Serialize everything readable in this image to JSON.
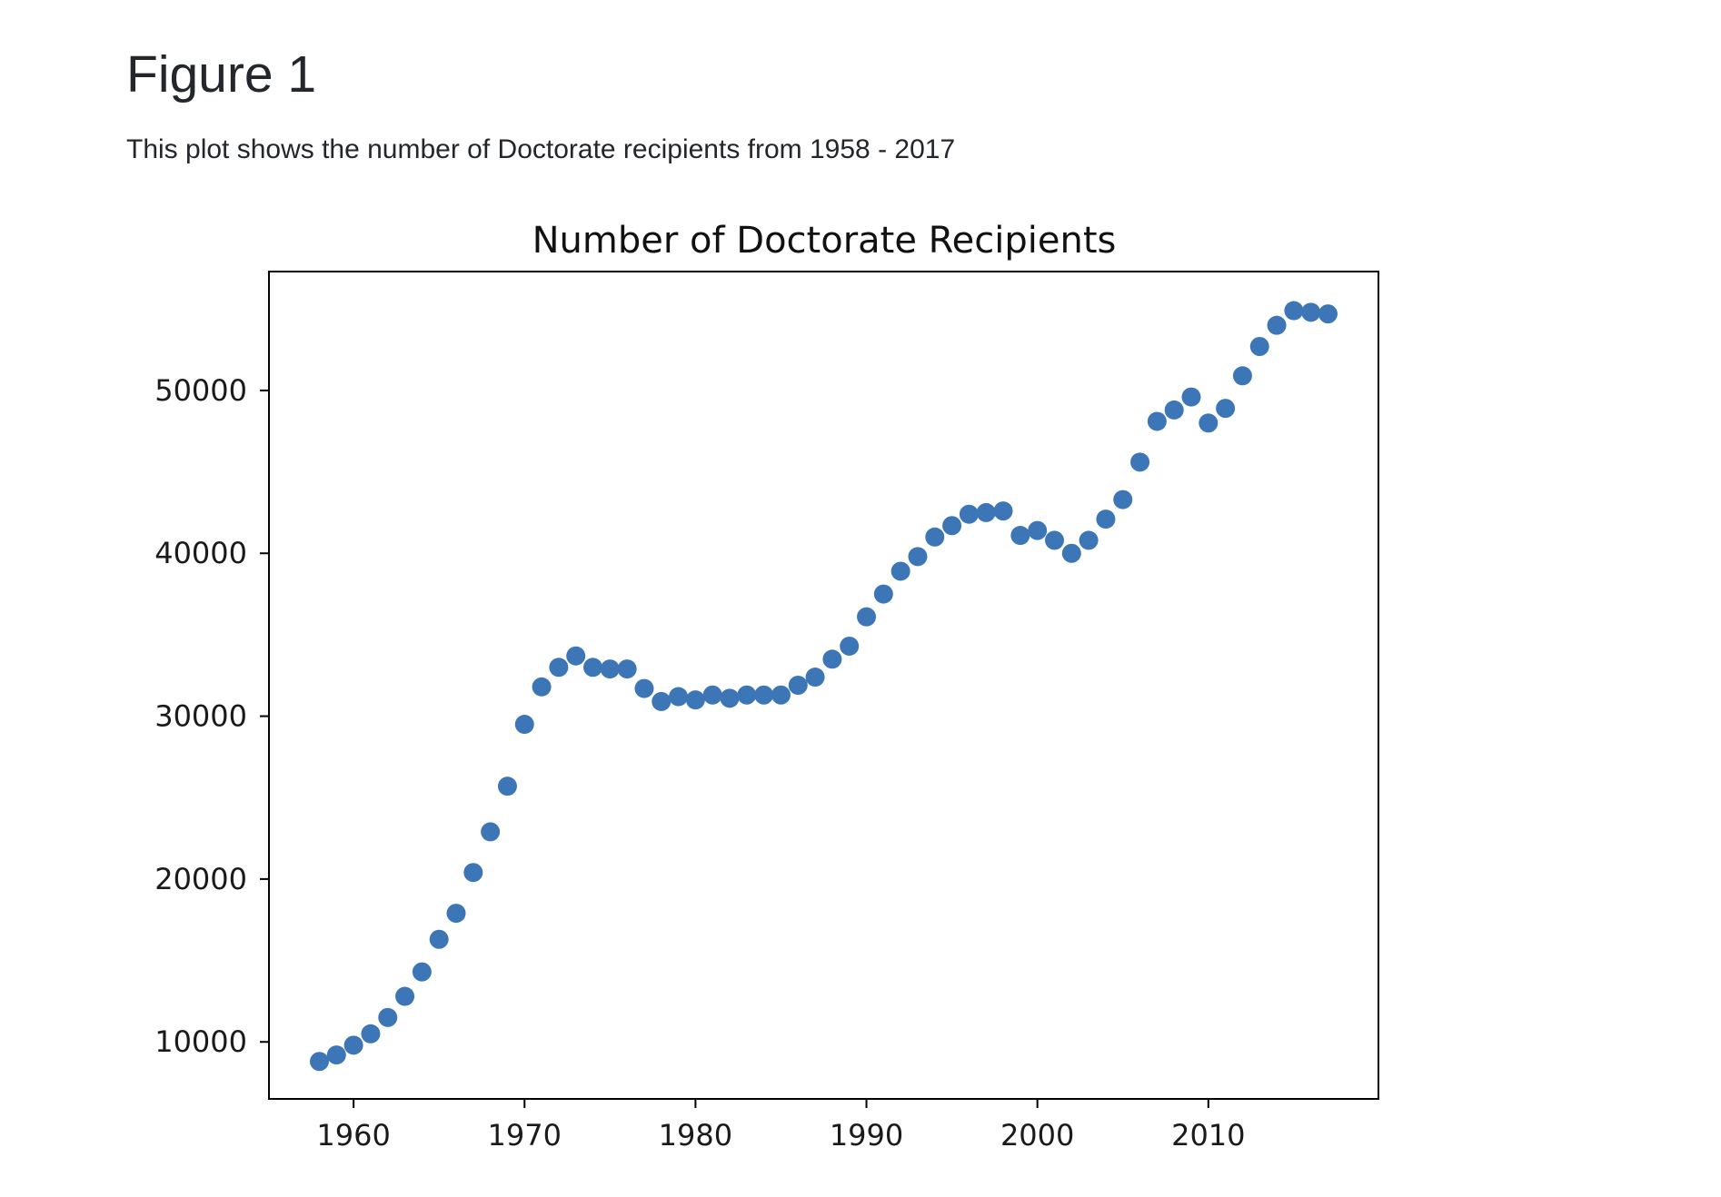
{
  "page": {
    "heading": "Figure 1",
    "caption": "This plot shows the number of Doctorate recipients from 1958 - 2017"
  },
  "chart_data": {
    "type": "scatter",
    "title": "Number of Doctorate Recipients",
    "xlabel": "",
    "ylabel": "",
    "xlim": [
      1955.05,
      2019.95
    ],
    "ylim": [
      6500,
      57300
    ],
    "xticks": [
      1960,
      1970,
      1980,
      1990,
      2000,
      2010
    ],
    "yticks": [
      10000,
      20000,
      30000,
      40000,
      50000
    ],
    "grid": false,
    "legend": "none",
    "marker_color": "#3d76b6",
    "x": [
      1958,
      1959,
      1960,
      1961,
      1962,
      1963,
      1964,
      1965,
      1966,
      1967,
      1968,
      1969,
      1970,
      1971,
      1972,
      1973,
      1974,
      1975,
      1976,
      1977,
      1978,
      1979,
      1980,
      1981,
      1982,
      1983,
      1984,
      1985,
      1986,
      1987,
      1988,
      1989,
      1990,
      1991,
      1992,
      1993,
      1994,
      1995,
      1996,
      1997,
      1998,
      1999,
      2000,
      2001,
      2002,
      2003,
      2004,
      2005,
      2006,
      2007,
      2008,
      2009,
      2010,
      2011,
      2012,
      2013,
      2014,
      2015,
      2016,
      2017
    ],
    "y": [
      8800,
      9200,
      9800,
      10500,
      11500,
      12800,
      14300,
      16300,
      17900,
      20400,
      22900,
      25700,
      29500,
      31800,
      33000,
      33700,
      33000,
      32900,
      32900,
      31700,
      30900,
      31200,
      31000,
      31300,
      31100,
      31300,
      31300,
      31300,
      31900,
      32400,
      33500,
      34300,
      36100,
      37500,
      38900,
      39800,
      41000,
      41700,
      42400,
      42500,
      42600,
      41100,
      41400,
      40800,
      40000,
      40800,
      42100,
      43300,
      45600,
      48100,
      48800,
      49600,
      48000,
      48900,
      50900,
      52700,
      54000,
      54900,
      54800,
      54700
    ]
  }
}
